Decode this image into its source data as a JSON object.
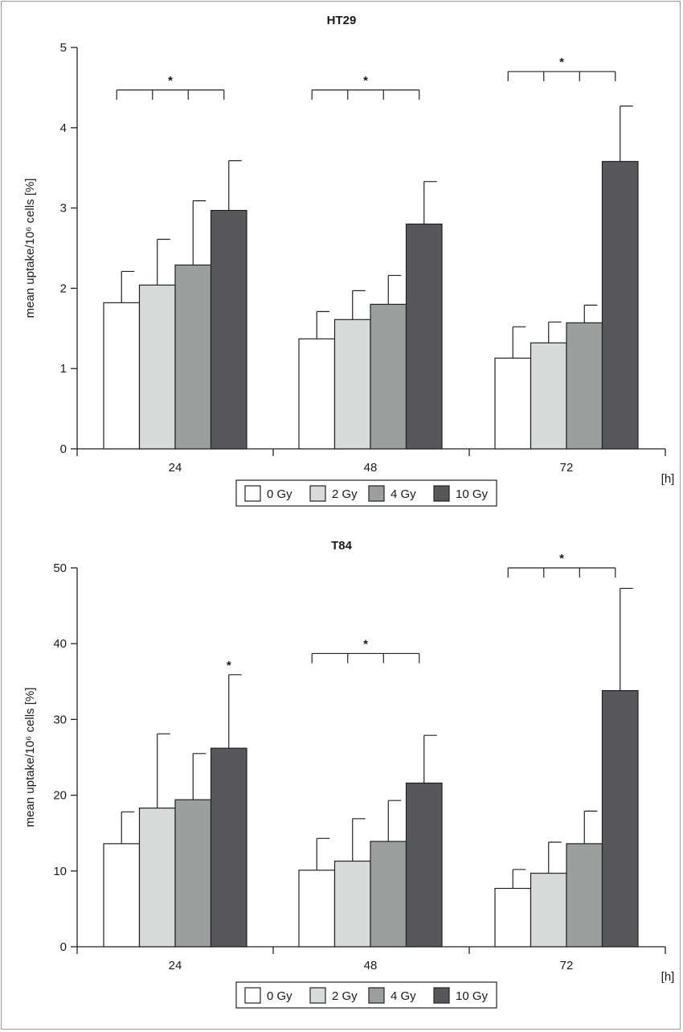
{
  "chart_data": [
    {
      "type": "bar",
      "title": "HT29",
      "ylabel": "mean uptake/10⁶ cells [%]",
      "xunit": "[h]",
      "ylim": [
        0,
        5
      ],
      "yticks": [
        0,
        1,
        2,
        3,
        4,
        5
      ],
      "categories": [
        "24",
        "48",
        "72"
      ],
      "series": [
        {
          "name": "0 Gy",
          "color": "#ffffff",
          "values": [
            1.82,
            1.37,
            1.13
          ],
          "errors": [
            0.39,
            0.34,
            0.39
          ]
        },
        {
          "name": "2 Gy",
          "color": "#d9dbdb",
          "values": [
            2.04,
            1.61,
            1.32
          ],
          "errors": [
            0.57,
            0.36,
            0.26
          ]
        },
        {
          "name": "4 Gy",
          "color": "#9d9e9e",
          "values": [
            2.29,
            1.8,
            1.57
          ],
          "errors": [
            0.8,
            0.36,
            0.22
          ]
        },
        {
          "name": "10 Gy",
          "color": "#58585a",
          "values": [
            2.97,
            2.8,
            3.58
          ],
          "errors": [
            0.62,
            0.53,
            0.69
          ]
        }
      ],
      "annotations": [
        {
          "label": "*",
          "category": 0,
          "type": "bracket",
          "level": 4.47
        },
        {
          "label": "*",
          "category": 1,
          "type": "bracket",
          "level": 4.47
        },
        {
          "label": "*",
          "category": 2,
          "type": "bracket",
          "level": 4.7
        }
      ],
      "legend": "bottom-center"
    },
    {
      "type": "bar",
      "title": "T84",
      "ylabel": "mean uptake/10⁶ cells [%]",
      "xunit": "[h]",
      "ylim": [
        0,
        50
      ],
      "yticks": [
        0,
        10,
        20,
        30,
        40,
        50
      ],
      "categories": [
        "24",
        "48",
        "72"
      ],
      "series": [
        {
          "name": "0 Gy",
          "color": "#ffffff",
          "values": [
            13.6,
            10.1,
            7.7
          ],
          "errors": [
            4.2,
            4.2,
            2.5
          ]
        },
        {
          "name": "2 Gy",
          "color": "#d9dbdb",
          "values": [
            18.3,
            11.3,
            9.7
          ],
          "errors": [
            9.8,
            5.6,
            4.1
          ]
        },
        {
          "name": "4 Gy",
          "color": "#9d9e9e",
          "values": [
            19.4,
            13.9,
            13.6
          ],
          "errors": [
            6.1,
            5.4,
            4.3
          ]
        },
        {
          "name": "10 Gy",
          "color": "#58585a",
          "values": [
            26.2,
            21.6,
            33.8
          ],
          "errors": [
            9.7,
            6.3,
            13.5
          ]
        }
      ],
      "annotations": [
        {
          "label": "*",
          "category": 0,
          "type": "single",
          "series": 3
        },
        {
          "label": "*",
          "category": 1,
          "type": "bracket",
          "level": 38.7
        },
        {
          "label": "*",
          "category": 2,
          "type": "bracket",
          "level": 50.0
        }
      ],
      "legend": "bottom-center"
    }
  ]
}
